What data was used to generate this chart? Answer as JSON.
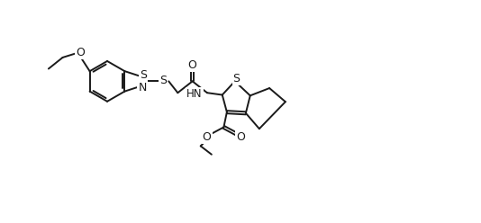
{
  "figsize": [
    5.34,
    2.48
  ],
  "dpi": 100,
  "bg": "#ffffff",
  "lc": "#1a1a1a",
  "lw": 1.4,
  "fs": 8.5,
  "xlim": [
    0,
    10.5
  ],
  "ylim": [
    -0.5,
    5.0
  ]
}
